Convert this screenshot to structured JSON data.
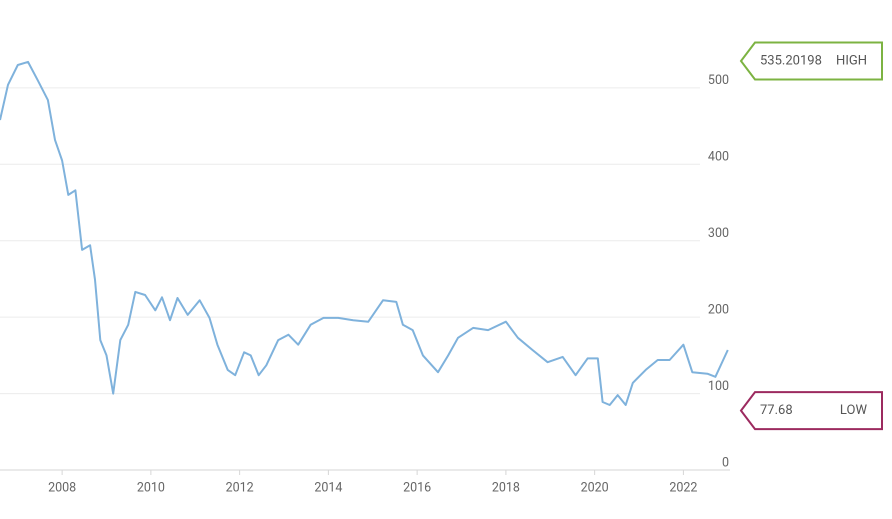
{
  "chart_data": {
    "type": "line",
    "color": "#7fb2dc",
    "grid": true,
    "x": [
      2006.6,
      2006.78,
      2007.0,
      2007.23,
      2007.45,
      2007.68,
      2007.84,
      2008.0,
      2008.14,
      2008.3,
      2008.45,
      2008.63,
      2008.74,
      2008.86,
      2009.0,
      2009.15,
      2009.31,
      2009.49,
      2009.65,
      2009.87,
      2010.1,
      2010.25,
      2010.43,
      2010.6,
      2010.83,
      2011.1,
      2011.32,
      2011.5,
      2011.73,
      2011.9,
      2012.1,
      2012.25,
      2012.43,
      2012.6,
      2012.87,
      2013.1,
      2013.32,
      2013.6,
      2013.89,
      2014.22,
      2014.56,
      2014.9,
      2015.23,
      2015.53,
      2015.68,
      2015.9,
      2016.13,
      2016.47,
      2016.7,
      2016.92,
      2017.26,
      2017.6,
      2018.0,
      2018.27,
      2018.6,
      2018.94,
      2019.28,
      2019.57,
      2019.84,
      2020.07,
      2020.18,
      2020.34,
      2020.52,
      2020.7,
      2020.86,
      2021.15,
      2021.42,
      2021.69,
      2022.0,
      2022.2,
      2022.54,
      2022.72,
      2023.0
    ],
    "values": [
      458,
      504,
      530,
      534,
      510,
      484,
      432,
      405,
      360,
      366,
      288,
      294,
      249,
      170,
      150,
      100,
      170,
      190,
      233,
      229,
      209,
      226,
      196,
      225,
      203,
      222,
      199,
      164,
      131,
      124,
      154,
      150,
      124,
      137,
      170,
      177,
      164,
      190,
      199,
      199,
      196,
      194,
      222,
      220,
      190,
      183,
      150,
      128,
      150,
      173,
      186,
      183,
      194,
      173,
      157,
      141,
      148,
      124,
      146,
      146,
      89,
      85,
      98,
      85,
      114,
      131,
      144,
      144,
      164,
      128,
      126,
      122,
      157
    ],
    "xlim": [
      2006.6,
      2023.05
    ],
    "xticks": [
      2008,
      2010,
      2012,
      2014,
      2016,
      2018,
      2020,
      2022
    ],
    "ylim": [
      0,
      615
    ],
    "yticks": [
      0,
      100,
      200,
      300,
      400,
      500
    ],
    "high": {
      "value": 535.20198,
      "label": "HIGH",
      "color": "#7cb342"
    },
    "low": {
      "value": 77.68,
      "label": "LOW",
      "color": "#9c2a5f"
    }
  }
}
